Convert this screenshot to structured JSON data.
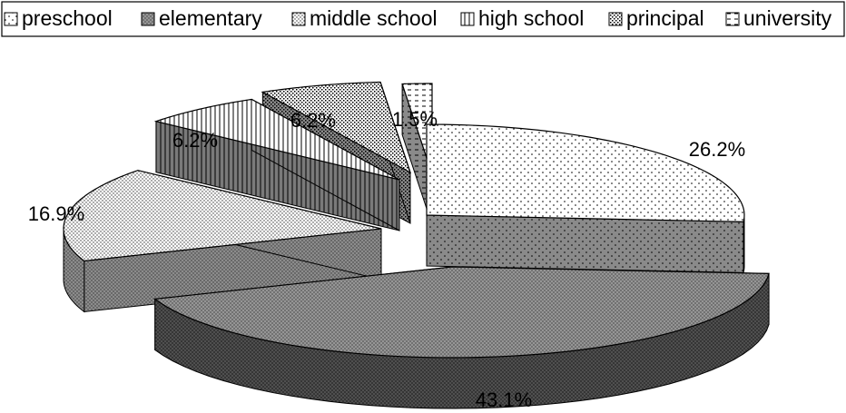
{
  "chart_data": {
    "type": "pie",
    "style": "3d-exploded",
    "legend_position": "top",
    "categories": [
      "preschool",
      "elementary",
      "middle school",
      "high school",
      "principal",
      "university"
    ],
    "values": [
      26.2,
      43.1,
      16.9,
      6.2,
      6.2,
      1.5
    ],
    "labels": [
      "26.2%",
      "43.1%",
      "16.9%",
      "6.2%",
      "6.2%",
      "1.5%"
    ],
    "patterns": [
      "dots-sparse",
      "fine-crosshatch",
      "dots-dense",
      "vertical-lines",
      "checker-dots",
      "horizontal-dashes"
    ]
  }
}
